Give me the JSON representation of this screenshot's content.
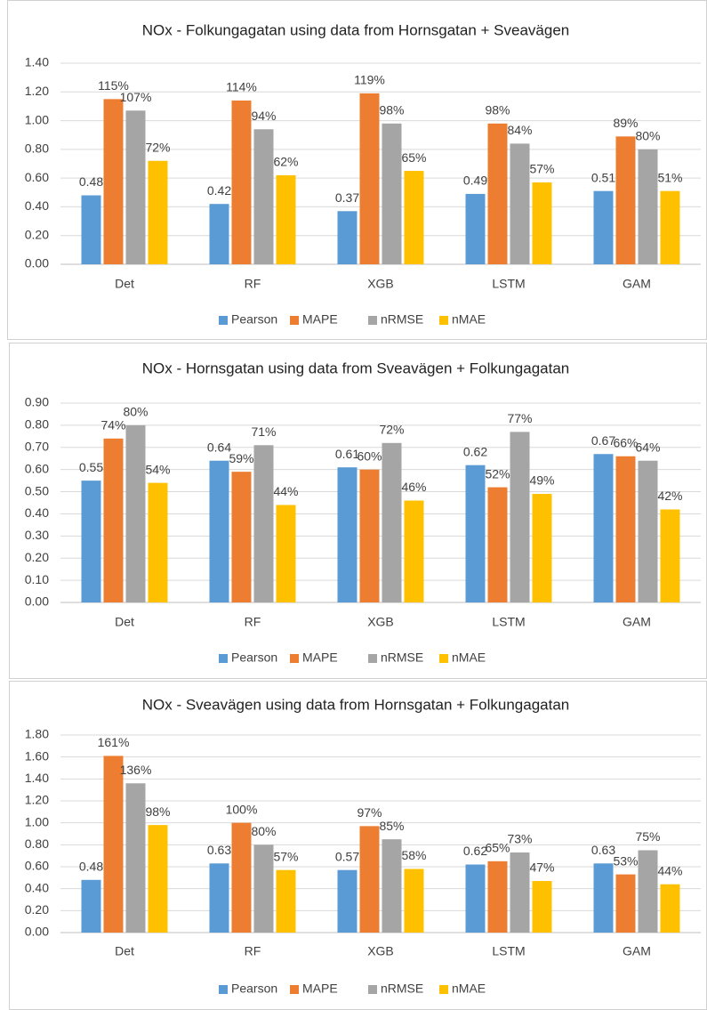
{
  "chart_data": [
    {
      "type": "bar",
      "title": "NOx - Folkungagatan using data from Hornsgatan + Sveavägen",
      "categories": [
        "Det",
        "RF",
        "XGB",
        "LSTM",
        "GAM"
      ],
      "series": [
        {
          "name": "Pearson",
          "color": "#5b9bd5",
          "values": [
            0.48,
            0.42,
            0.37,
            0.49,
            0.51
          ],
          "value_labels": [
            "0.48",
            "0.42",
            "0.37",
            "0.49",
            "0.51"
          ]
        },
        {
          "name": "MAPE",
          "color": "#ed7d31",
          "values": [
            1.15,
            1.14,
            1.19,
            0.98,
            0.89
          ],
          "value_labels": [
            "115%",
            "114%",
            "119%",
            "98%",
            "89%"
          ]
        },
        {
          "name": "nRMSE",
          "color": "#a5a5a5",
          "values": [
            1.07,
            0.94,
            0.98,
            0.84,
            0.8
          ],
          "value_labels": [
            "107%",
            "94%",
            "98%",
            "84%",
            "80%"
          ]
        },
        {
          "name": "nMAE",
          "color": "#ffc000",
          "values": [
            0.72,
            0.62,
            0.65,
            0.57,
            0.51
          ],
          "value_labels": [
            "72%",
            "62%",
            "65%",
            "57%",
            "51%"
          ]
        }
      ],
      "ylim": [
        0,
        1.4
      ],
      "yticks": [
        {
          "value": 0,
          "label": "0.00"
        },
        {
          "value": 0.2,
          "label": "0.20"
        },
        {
          "value": 0.4,
          "label": "0.40"
        },
        {
          "value": 0.6,
          "label": "0.60"
        },
        {
          "value": 0.8,
          "label": "0.80"
        },
        {
          "value": 1.0,
          "label": "1.00"
        },
        {
          "value": 1.2,
          "label": "1.20"
        },
        {
          "value": 1.4,
          "label": "1.40"
        }
      ],
      "grid": true,
      "legend": "bottom"
    },
    {
      "type": "bar",
      "title": "NOx - Hornsgatan using data from Sveavägen + Folkungagatan",
      "categories": [
        "Det",
        "RF",
        "XGB",
        "LSTM",
        "GAM"
      ],
      "series": [
        {
          "name": "Pearson",
          "color": "#5b9bd5",
          "values": [
            0.55,
            0.64,
            0.61,
            0.62,
            0.67
          ],
          "value_labels": [
            "0.55",
            "0.64",
            "0.61",
            "0.62",
            "0.67"
          ]
        },
        {
          "name": "MAPE",
          "color": "#ed7d31",
          "values": [
            0.74,
            0.59,
            0.6,
            0.52,
            0.66
          ],
          "value_labels": [
            "74%",
            "59%",
            "60%",
            "52%",
            "66%"
          ]
        },
        {
          "name": "nRMSE",
          "color": "#a5a5a5",
          "values": [
            0.8,
            0.71,
            0.72,
            0.77,
            0.64
          ],
          "value_labels": [
            "80%",
            "71%",
            "72%",
            "77%",
            "64%"
          ]
        },
        {
          "name": "nMAE",
          "color": "#ffc000",
          "values": [
            0.54,
            0.44,
            0.46,
            0.49,
            0.42
          ],
          "value_labels": [
            "54%",
            "44%",
            "46%",
            "49%",
            "42%"
          ]
        }
      ],
      "ylim": [
        0,
        0.9
      ],
      "yticks": [
        {
          "value": 0,
          "label": "0.00"
        },
        {
          "value": 0.1,
          "label": "0.10"
        },
        {
          "value": 0.2,
          "label": "0.20"
        },
        {
          "value": 0.3,
          "label": "0.30"
        },
        {
          "value": 0.4,
          "label": "0.40"
        },
        {
          "value": 0.5,
          "label": "0.50"
        },
        {
          "value": 0.6,
          "label": "0.60"
        },
        {
          "value": 0.7,
          "label": "0.70"
        },
        {
          "value": 0.8,
          "label": "0.80"
        },
        {
          "value": 0.9,
          "label": "0.90"
        }
      ],
      "grid": true,
      "legend": "bottom"
    },
    {
      "type": "bar",
      "title": "NOx - Sveavägen using data from Hornsgatan + Folkungagatan",
      "categories": [
        "Det",
        "RF",
        "XGB",
        "LSTM",
        "GAM"
      ],
      "series": [
        {
          "name": "Pearson",
          "color": "#5b9bd5",
          "values": [
            0.48,
            0.63,
            0.57,
            0.62,
            0.63
          ],
          "value_labels": [
            "0.48",
            "0.63",
            "0.57",
            "0.62",
            "0.63"
          ]
        },
        {
          "name": "MAPE",
          "color": "#ed7d31",
          "values": [
            1.61,
            1.0,
            0.97,
            0.65,
            0.53
          ],
          "value_labels": [
            "161%",
            "100%",
            "97%",
            "65%",
            "53%"
          ]
        },
        {
          "name": "nRMSE",
          "color": "#a5a5a5",
          "values": [
            1.36,
            0.8,
            0.85,
            0.73,
            0.75
          ],
          "value_labels": [
            "136%",
            "80%",
            "85%",
            "73%",
            "75%"
          ]
        },
        {
          "name": "nMAE",
          "color": "#ffc000",
          "values": [
            0.98,
            0.57,
            0.58,
            0.47,
            0.44
          ],
          "value_labels": [
            "98%",
            "57%",
            "58%",
            "47%",
            "44%"
          ]
        }
      ],
      "ylim": [
        0,
        1.8
      ],
      "yticks": [
        {
          "value": 0,
          "label": "0.00"
        },
        {
          "value": 0.2,
          "label": "0.20"
        },
        {
          "value": 0.4,
          "label": "0.40"
        },
        {
          "value": 0.6,
          "label": "0.60"
        },
        {
          "value": 0.8,
          "label": "0.80"
        },
        {
          "value": 1.0,
          "label": "1.00"
        },
        {
          "value": 1.2,
          "label": "1.20"
        },
        {
          "value": 1.4,
          "label": "1.40"
        },
        {
          "value": 1.6,
          "label": "1.60"
        },
        {
          "value": 1.8,
          "label": "1.80"
        }
      ],
      "grid": true,
      "legend": "bottom"
    }
  ]
}
